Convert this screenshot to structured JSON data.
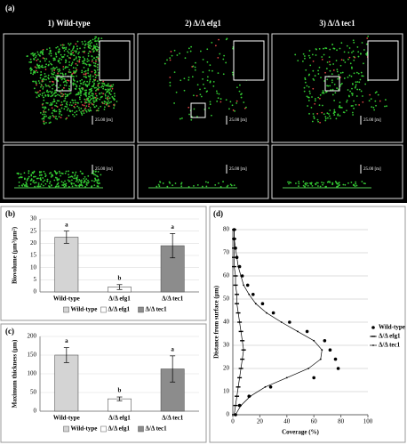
{
  "panel_a": {
    "label": "(a)",
    "columns": [
      {
        "title": "1) Wild-type",
        "scale_top": "25.00 [m]",
        "scale_bottom": "25.00 [m]"
      },
      {
        "title": "2) Δ/Δ efg1",
        "scale_top": "25.00 [m]",
        "scale_bottom": "25.00 [m]"
      },
      {
        "title": "3) Δ/Δ tec1",
        "scale_top": "25.00 [m]",
        "scale_bottom": "25.00 [m]"
      }
    ]
  },
  "chart_data": [
    {
      "type": "bar",
      "label": "(b)",
      "y_label": "Biovolume (μm³/μm²)",
      "categories": [
        "Wild-type",
        "Δ/Δ efg1",
        "Δ/Δ tec1"
      ],
      "values": [
        22.5,
        2,
        19
      ],
      "errors": [
        2.5,
        1,
        5
      ],
      "annotations": [
        "a",
        "b",
        "a"
      ],
      "colors": [
        "#d4d4d4",
        "#ffffff",
        "#8c8c8c"
      ],
      "legend": [
        "Wild-type",
        "Δ/Δ efg1",
        "Δ/Δ tec1"
      ],
      "legend_position": "bottom",
      "ylim": [
        0,
        30
      ],
      "yticks": [
        0,
        5,
        10,
        15,
        20,
        25,
        30
      ],
      "grid": true
    },
    {
      "type": "bar",
      "label": "(c)",
      "y_label": "Maximum thickness (μm)",
      "categories": [
        "Wild-type",
        "Δ/Δ efg1",
        "Δ/Δ tec1"
      ],
      "values": [
        150,
        33,
        113
      ],
      "errors": [
        20,
        5,
        35
      ],
      "annotations": [
        "a",
        "b",
        "a"
      ],
      "colors": [
        "#d4d4d4",
        "#ffffff",
        "#8c8c8c"
      ],
      "legend": [
        "Wild-type",
        "Δ/Δ efg1",
        "Δ/Δ tec1"
      ],
      "legend_position": "bottom",
      "ylim": [
        0,
        200
      ],
      "yticks": [
        0,
        50,
        100,
        150,
        200
      ],
      "grid": true
    },
    {
      "type": "line",
      "label": "(d)",
      "x_label": "Coverage (%)",
      "y_label": "Distance from surface (μm)",
      "y": [
        0,
        4,
        8,
        12,
        16,
        20,
        24,
        28,
        32,
        36,
        40,
        44,
        48,
        52,
        56,
        60,
        64,
        68,
        72,
        76,
        80
      ],
      "series": [
        {
          "name": "Wild-type",
          "color": "#000000",
          "marker": "circle",
          "line": false,
          "x": [
            2,
            5,
            12,
            28,
            60,
            78,
            76,
            72,
            68,
            55,
            42,
            30,
            22,
            15,
            11,
            7,
            5,
            3,
            2,
            1,
            1
          ]
        },
        {
          "name": "Δ/Δ efg1",
          "color": "#000000",
          "marker": "dash",
          "line": true,
          "x": [
            1,
            2,
            3,
            4,
            5,
            6,
            7,
            8,
            7,
            6,
            5,
            4,
            3,
            3,
            2,
            2,
            1,
            1,
            1,
            1,
            1
          ]
        },
        {
          "name": "Δ/Δ tec1",
          "color": "#000000",
          "marker": "dot",
          "line": true,
          "x": [
            2,
            6,
            13,
            24,
            40,
            56,
            65,
            66,
            60,
            48,
            36,
            25,
            17,
            12,
            8,
            6,
            4,
            3,
            2,
            1,
            1
          ]
        }
      ],
      "legend_position": "right",
      "xlim": [
        0,
        100
      ],
      "xticks": [
        0,
        20,
        40,
        60,
        80,
        100
      ],
      "ylim": [
        0,
        80
      ],
      "yticks": [
        0,
        10,
        20,
        30,
        40,
        50,
        60,
        70,
        80
      ],
      "grid": true
    }
  ]
}
